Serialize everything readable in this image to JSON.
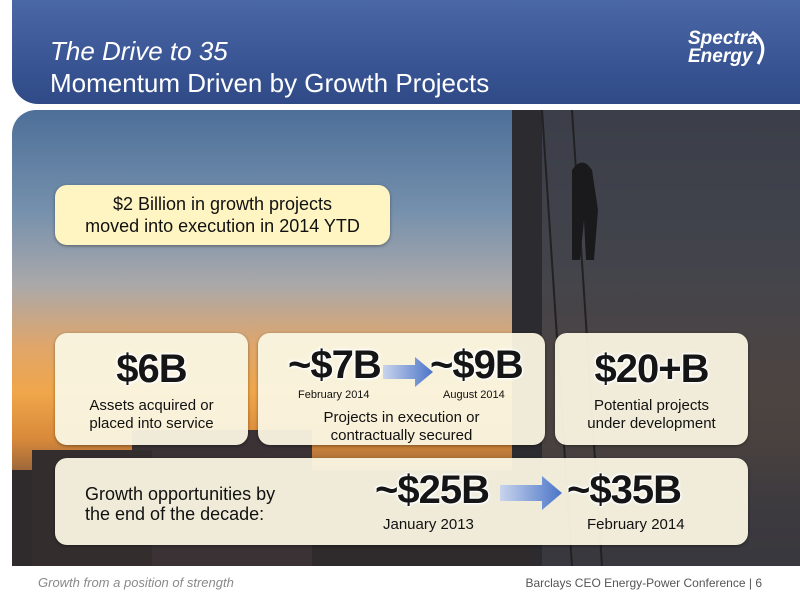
{
  "header": {
    "title": "The Drive to 35",
    "subtitle": "Momentum Driven by Growth Projects",
    "logo": [
      "Spectra",
      "Energy"
    ]
  },
  "callout": [
    "$2 Billion in growth projects",
    "moved into execution in 2014 YTD"
  ],
  "boxes": [
    {
      "value": "$6B",
      "text": [
        "Assets acquired or",
        "placed into service"
      ]
    },
    {
      "from": {
        "value": "~$7B",
        "date": "February 2014"
      },
      "to": {
        "value": "~$9B",
        "date": "August 2014"
      },
      "text": [
        "Projects in execution or",
        "contractually secured"
      ]
    },
    {
      "value": "$20+B",
      "text": [
        "Potential projects",
        "under development"
      ]
    }
  ],
  "growth": {
    "label": [
      "Growth opportunities by",
      "the end of the decade:"
    ],
    "from": {
      "value": "~$25B",
      "date": "January 2013"
    },
    "to": {
      "value": "~$35B",
      "date": "February 2014"
    }
  },
  "footer": {
    "tagline": "Growth from a position of strength",
    "conference": "Barclays CEO Energy-Power Conference | 6"
  }
}
